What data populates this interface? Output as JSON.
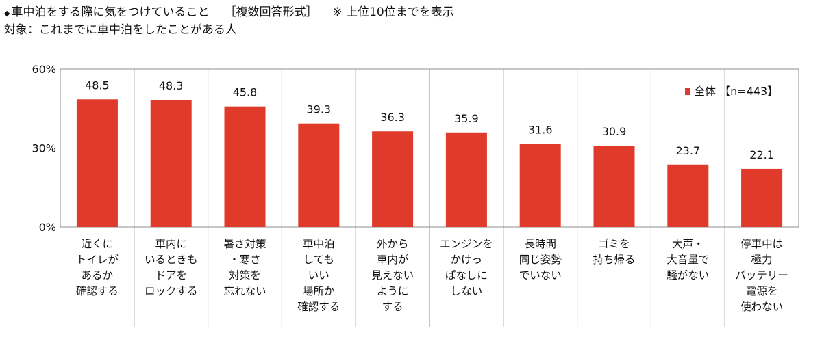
{
  "header": {
    "marker": "◆",
    "title": "車中泊をする際に気をつけていること",
    "answer_type": "［複数回答形式］",
    "note": "※ 上位10位までを表示",
    "target": "対象：これまでに車中泊をしたことがある人"
  },
  "chart_data": {
    "type": "bar",
    "title": "車中泊をする際に気をつけていること",
    "xlabel": "",
    "ylabel": "",
    "ylim": [
      0,
      60
    ],
    "yticks": [
      "0%",
      "30%",
      "60%"
    ],
    "yticks_values": [
      0,
      30,
      60
    ],
    "grid": false,
    "legend_position": "top-right",
    "categories": [
      "近くに\nトイレが\nあるか\n確認する",
      "車内に\nいるときも\nドアを\nロックする",
      "暑さ対策\n・寒さ\n対策を\n忘れない",
      "車中泊\nしても\nいい\n場所か\n確認する",
      "外から\n車内が\n見えない\nように\nする",
      "エンジンを\nかけっ\nぱなしに\nしない",
      "長時間\n同じ姿勢\nでいない",
      "ゴミを\n持ち帰る",
      "大声・\n大音量で\n騒がない",
      "停車中は\n極力\nバッテリー\n電源を\n使わない"
    ],
    "series": [
      {
        "name": "全体",
        "legend_suffix": "【n=443】",
        "color": "#e03a2b",
        "values": [
          48.5,
          48.3,
          45.8,
          39.3,
          36.3,
          35.9,
          31.6,
          30.9,
          23.7,
          22.1
        ],
        "value_labels": [
          "48.5",
          "48.3",
          "45.8",
          "39.3",
          "36.3",
          "35.9",
          "31.6",
          "30.9",
          "23.7",
          "22.1"
        ]
      }
    ]
  }
}
